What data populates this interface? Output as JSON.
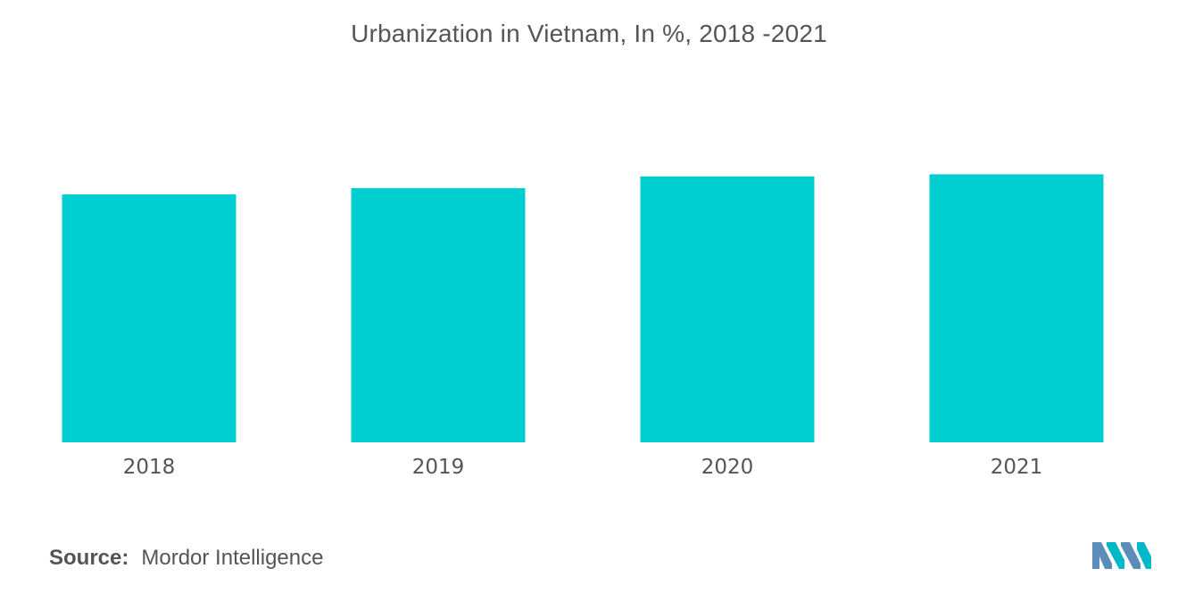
{
  "chart_data": {
    "type": "bar",
    "title": "Urbanization in Vietnam, In %, 2018 -2021",
    "categories": [
      "2018",
      "2019",
      "2020",
      "2021"
    ],
    "values": [
      35.7,
      36.6,
      38.3,
      38.6
    ],
    "xlabel": "",
    "ylabel": "",
    "ylim": [
      0,
      56
    ],
    "grid": false,
    "legend": "none",
    "bar_color": "#00CED1"
  },
  "source": {
    "label": "Source:",
    "text": "Mordor Intelligence"
  },
  "logo": {
    "icon": "mordor-intelligence-logo-icon",
    "colors": [
      "#5B8DB8",
      "#00B8C8"
    ]
  }
}
